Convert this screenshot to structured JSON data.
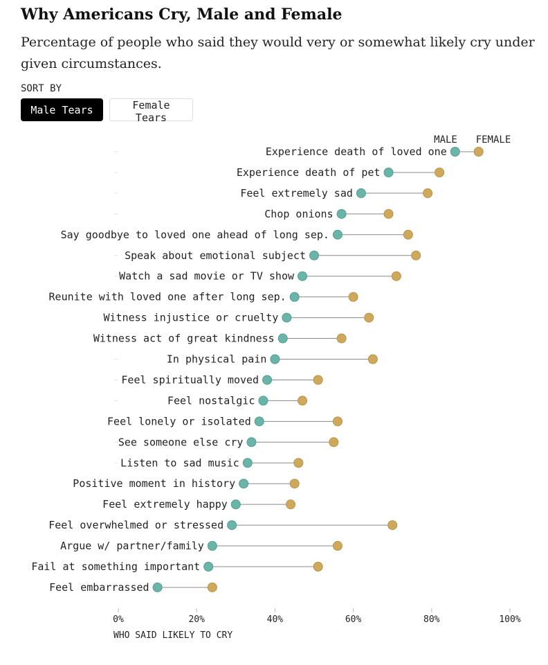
{
  "title": "Why Americans Cry, Male and Female",
  "subtitle": "Percentage of people who said they would very or somewhat likely cry under given circumstances.",
  "sort": {
    "label": "SORT BY",
    "options": [
      "Male Tears",
      "Female Tears"
    ],
    "selected": "Male Tears"
  },
  "colors": {
    "male": "#6ab5a9",
    "female": "#cfa95b",
    "line": "#888888",
    "selected_bg": "#000000"
  },
  "chart_data": {
    "type": "dumbbell",
    "legend": [
      "MALE",
      "FEMALE"
    ],
    "xlabel": "WHO SAID LIKELY TO CRY",
    "xlim": [
      0,
      100
    ],
    "xticks": [
      "0%",
      "20%",
      "40%",
      "60%",
      "80%",
      "100%"
    ],
    "xtick_values": [
      0,
      20,
      40,
      60,
      80,
      100
    ],
    "categories": [
      "Experience death of loved one",
      "Experience death of pet",
      "Feel extremely sad",
      "Chop onions",
      "Say goodbye to loved one ahead of long sep.",
      "Speak about emotional subject",
      "Watch a sad movie or TV show",
      "Reunite with loved one after long sep.",
      "Witness injustice or cruelty",
      "Witness act of great kindness",
      "In physical pain",
      "Feel spiritually moved",
      "Feel nostalgic",
      "Feel lonely or isolated",
      "See someone else cry",
      "Listen to sad music",
      "Positive moment in history",
      "Feel extremely happy",
      "Feel overwhelmed or stressed",
      "Argue w/ partner/family",
      "Fail at something important",
      "Feel embarrassed"
    ],
    "series": [
      {
        "name": "Male",
        "values": [
          86,
          69,
          62,
          57,
          56,
          50,
          47,
          45,
          43,
          42,
          40,
          38,
          37,
          36,
          34,
          33,
          32,
          30,
          29,
          24,
          23,
          10
        ]
      },
      {
        "name": "Female",
        "values": [
          92,
          82,
          79,
          69,
          74,
          76,
          71,
          60,
          64,
          57,
          65,
          51,
          47,
          56,
          55,
          46,
          45,
          44,
          70,
          56,
          51,
          24
        ]
      }
    ]
  }
}
